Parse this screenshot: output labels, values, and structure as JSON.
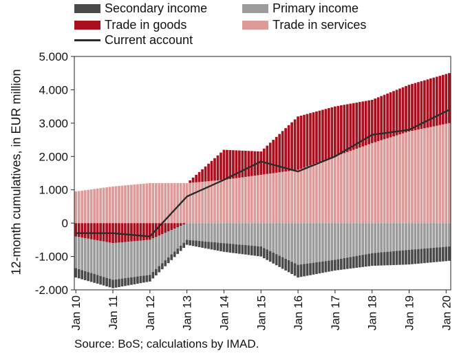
{
  "chart_data": {
    "type": "bar",
    "title": "",
    "xlabel": "",
    "ylabel": "12-month cumulatives, in EUR million",
    "ylim": [
      -2000,
      5000
    ],
    "y_ticks": [
      "5.000",
      "4.000",
      "3.000",
      "2.000",
      "1.000",
      "0",
      "-1.000",
      "-2.000"
    ],
    "y_tick_values": [
      5000,
      4000,
      3000,
      2000,
      1000,
      0,
      -1000,
      -2000
    ],
    "x_tick_labels": [
      "Jan 10",
      "Jan 11",
      "Jan 12",
      "Jan 13",
      "Jan 14",
      "Jan 15",
      "Jan 16",
      "Jan 17",
      "Jan 18",
      "Jan 19",
      "Jan 20"
    ],
    "legend_placement": "top",
    "grid": false,
    "colors": {
      "secondary_income": "#4a4a4a",
      "primary_income": "#9b9b9b",
      "trade_goods": "#a8101e",
      "trade_services": "#dc9a98",
      "current_account": "#2b2b2b"
    },
    "x_start": "Jan 2010",
    "x_end": "Feb 2020",
    "x_frequency": "monthly",
    "series": [
      {
        "name": "Secondary income",
        "type": "bar",
        "anchors": [
          [
            "Jan 10",
            -280
          ],
          [
            "Jan 11",
            -250
          ],
          [
            "Jan 12",
            -200
          ],
          [
            "Jan 13",
            -150
          ],
          [
            "Jan 14",
            -260
          ],
          [
            "Jan 15",
            -300
          ],
          [
            "Jan 16",
            -380
          ],
          [
            "Jan 17",
            -320
          ],
          [
            "Jan 18",
            -380
          ],
          [
            "Jan 19",
            -440
          ],
          [
            "Feb 20",
            -430
          ]
        ]
      },
      {
        "name": "Primary income",
        "type": "bar",
        "anchors": [
          [
            "Jan 10",
            -950
          ],
          [
            "Jan 11",
            -1100
          ],
          [
            "Jan 12",
            -1050
          ],
          [
            "Jan 13",
            -500
          ],
          [
            "Jan 14",
            -600
          ],
          [
            "Jan 15",
            -700
          ],
          [
            "Jan 16",
            -1250
          ],
          [
            "Jan 17",
            -1100
          ],
          [
            "Jan 18",
            -900
          ],
          [
            "Jan 19",
            -800
          ],
          [
            "Feb 20",
            -700
          ]
        ]
      },
      {
        "name": "Trade in goods",
        "type": "bar",
        "anchors": [
          [
            "Jan 10",
            -400
          ],
          [
            "Jan 11",
            -600
          ],
          [
            "Jan 12",
            -500
          ],
          [
            "Jan 13",
            0
          ],
          [
            "Jan 14",
            900
          ],
          [
            "Jan 15",
            700
          ],
          [
            "Jan 16",
            1600
          ],
          [
            "Jan 17",
            1500
          ],
          [
            "Jan 18",
            1300
          ],
          [
            "Jan 19",
            1400
          ],
          [
            "Feb 20",
            1500
          ]
        ]
      },
      {
        "name": "Trade in services",
        "type": "bar",
        "anchors": [
          [
            "Jan 10",
            950
          ],
          [
            "Jan 11",
            1100
          ],
          [
            "Jan 12",
            1200
          ],
          [
            "Jan 13",
            1200
          ],
          [
            "Jan 14",
            1300
          ],
          [
            "Jan 15",
            1450
          ],
          [
            "Jan 16",
            1600
          ],
          [
            "Jan 17",
            2000
          ],
          [
            "Jan 18",
            2400
          ],
          [
            "Jan 19",
            2750
          ],
          [
            "Feb 20",
            3000
          ]
        ]
      },
      {
        "name": "Current account",
        "type": "line",
        "anchors": [
          [
            "Jan 10",
            -300
          ],
          [
            "Jan 11",
            -300
          ],
          [
            "Jan 12",
            -400
          ],
          [
            "Jan 13",
            800
          ],
          [
            "Jan 14",
            1300
          ],
          [
            "Jan 15",
            1850
          ],
          [
            "Jan 16",
            1550
          ],
          [
            "Jan 17",
            2000
          ],
          [
            "Jan 18",
            2650
          ],
          [
            "Jan 19",
            2800
          ],
          [
            "Feb 20",
            3400
          ]
        ]
      }
    ]
  },
  "legend": {
    "secondary": "Secondary income",
    "primary": "Primary income",
    "goods": "Trade in goods",
    "services": "Trade in services",
    "current": "Current account"
  },
  "source": "Source: BoS; calculations by IMAD."
}
